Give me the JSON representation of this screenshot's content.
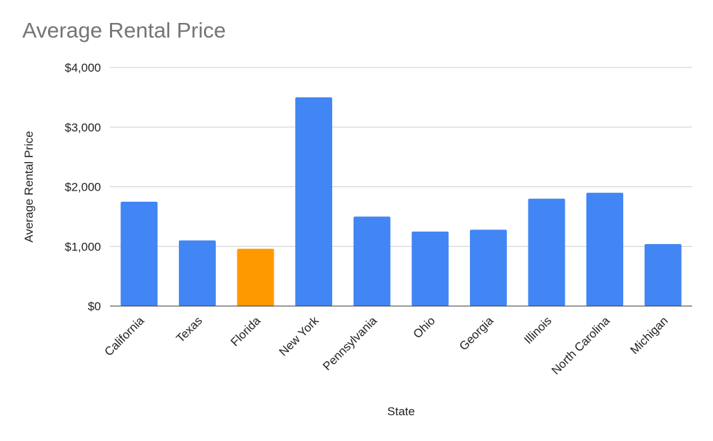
{
  "chart_data": {
    "type": "bar",
    "title": "Average Rental Price",
    "xlabel": "State",
    "ylabel": "Average Rental Price",
    "categories": [
      "California",
      "Texas",
      "Florida",
      "New York",
      "Pennsylvania",
      "Ohio",
      "Georgia",
      "Illinois",
      "North Carolina",
      "Michigan"
    ],
    "values": [
      1750,
      1100,
      960,
      3500,
      1500,
      1250,
      1280,
      1800,
      1900,
      1040
    ],
    "ylim": [
      0,
      4000
    ],
    "yticks": [
      0,
      1000,
      2000,
      3000,
      4000
    ],
    "ytick_labels": [
      "$0",
      "$1,000",
      "$2,000",
      "$3,000",
      "$4,000"
    ],
    "grid": true,
    "legend": "none",
    "colors": {
      "bar": "#4285f4",
      "highlight": "#ff9900",
      "highlight_category": "Florida",
      "grid": "#cccccc",
      "axis": "#333333",
      "title": "#757575"
    }
  }
}
